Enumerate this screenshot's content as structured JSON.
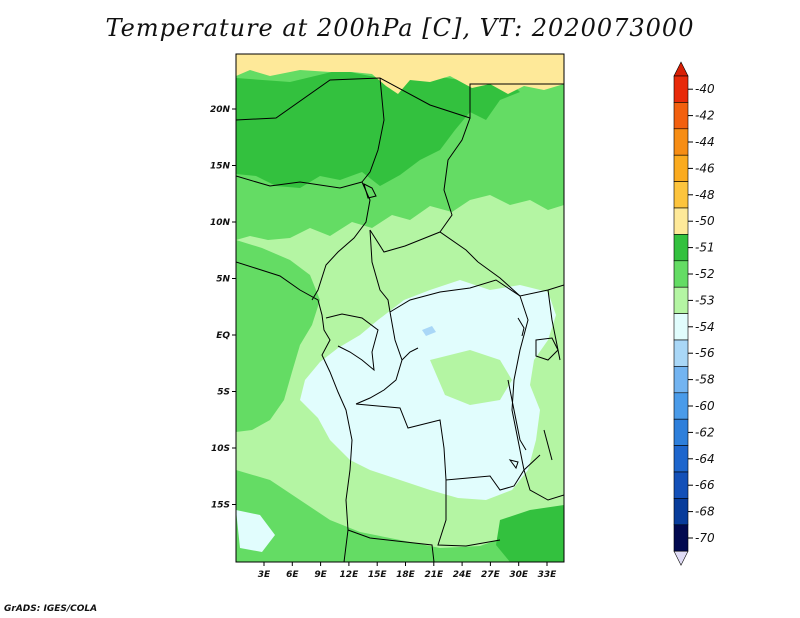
{
  "title": "Temperature at 200hPa [C], VT: 2020073000",
  "credit": "GrADS: IGES/COLA",
  "map": {
    "lat_ticks": [
      "20N",
      "15N",
      "10N",
      "5N",
      "EQ",
      "5S",
      "10S",
      "15S"
    ],
    "lon_ticks": [
      "3E",
      "6E",
      "9E",
      "12E",
      "15E",
      "18E",
      "21E",
      "24E",
      "27E",
      "30E",
      "33E"
    ],
    "colors": {
      "c51": "#fee999",
      "c52": "#33c13e",
      "c53": "#64dc64",
      "c54": "#b4f5a3",
      "c56": "#e1fdfd",
      "c58": "#a9d7f7",
      "border": "#000000"
    }
  },
  "colorbar": {
    "levels": [
      {
        "label": "-40",
        "color": "#e82a0a"
      },
      {
        "label": "-42",
        "color": "#f2600f"
      },
      {
        "label": "-44",
        "color": "#f78d14"
      },
      {
        "label": "-46",
        "color": "#fbab1f"
      },
      {
        "label": "-48",
        "color": "#fdc43d"
      },
      {
        "label": "-50",
        "color": "#fee999"
      },
      {
        "label": "-51",
        "color": "#33c13e"
      },
      {
        "label": "-52",
        "color": "#64dc64"
      },
      {
        "label": "-53",
        "color": "#b4f5a3"
      },
      {
        "label": "-54",
        "color": "#e1fdfd"
      },
      {
        "label": "-56",
        "color": "#a9d7f7"
      },
      {
        "label": "-58",
        "color": "#73b4f1"
      },
      {
        "label": "-60",
        "color": "#4a9be9"
      },
      {
        "label": "-62",
        "color": "#2e7fdb"
      },
      {
        "label": "-64",
        "color": "#1e66cd"
      },
      {
        "label": "-66",
        "color": "#1350b8"
      },
      {
        "label": "-68",
        "color": "#083c9b"
      },
      {
        "label": "-70",
        "color": "#020a50"
      }
    ],
    "top_cap_color": "#d81f05",
    "bottom_cap_color": "#e0dcf5"
  }
}
